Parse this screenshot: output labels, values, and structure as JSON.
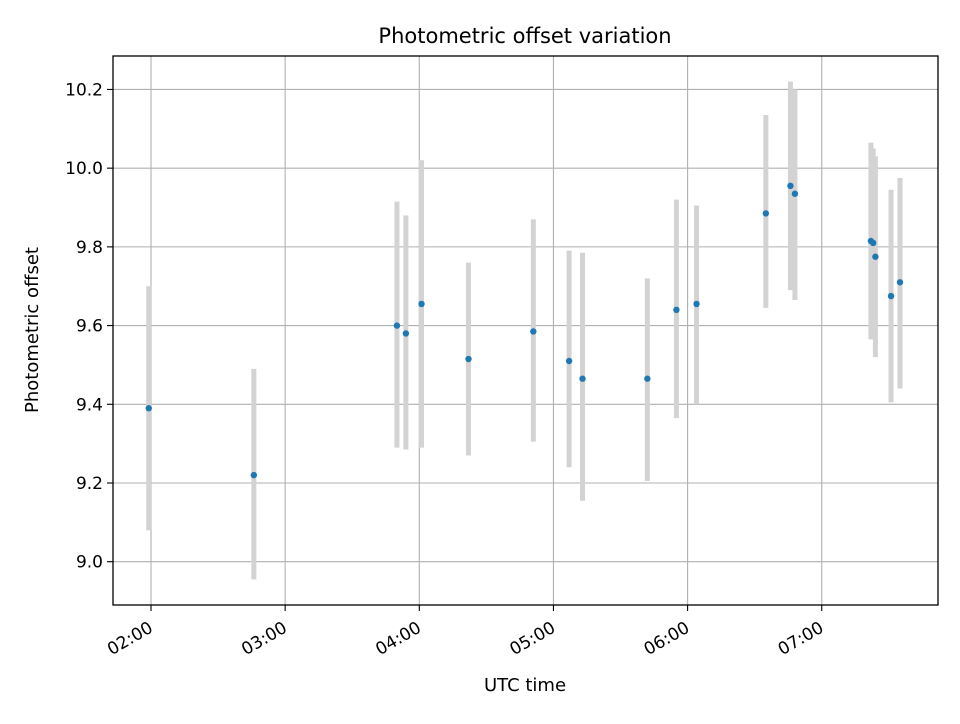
{
  "chart_data": {
    "type": "scatter",
    "title": "Photometric offset variation",
    "xlabel": "UTC time",
    "ylabel": "Photometric offset",
    "x_unit": "time-of-day (UTC)",
    "xlim": [
      "01:43",
      "07:52"
    ],
    "ylim": [
      8.89,
      10.285
    ],
    "x_ticks": [
      "02:00",
      "03:00",
      "04:00",
      "05:00",
      "06:00",
      "07:00"
    ],
    "y_ticks": [
      9.0,
      9.2,
      9.4,
      9.6,
      9.8,
      10.0,
      10.2
    ],
    "grid": true,
    "error_bar_color": "#d3d3d3",
    "point_color": "#1f77b4",
    "points": [
      {
        "x": "01:59",
        "y": 9.39,
        "low": 9.08,
        "high": 9.7
      },
      {
        "x": "02:46",
        "y": 9.22,
        "low": 8.955,
        "high": 9.49
      },
      {
        "x": "03:50",
        "y": 9.6,
        "low": 9.29,
        "high": 9.915
      },
      {
        "x": "03:54",
        "y": 9.58,
        "low": 9.285,
        "high": 9.88
      },
      {
        "x": "04:01",
        "y": 9.655,
        "low": 9.29,
        "high": 10.02
      },
      {
        "x": "04:22",
        "y": 9.515,
        "low": 9.27,
        "high": 9.76
      },
      {
        "x": "04:51",
        "y": 9.585,
        "low": 9.305,
        "high": 9.87
      },
      {
        "x": "05:07",
        "y": 9.51,
        "low": 9.24,
        "high": 9.79
      },
      {
        "x": "05:13",
        "y": 9.465,
        "low": 9.155,
        "high": 9.785
      },
      {
        "x": "05:42",
        "y": 9.465,
        "low": 9.205,
        "high": 9.72
      },
      {
        "x": "05:55",
        "y": 9.64,
        "low": 9.365,
        "high": 9.92
      },
      {
        "x": "06:04",
        "y": 9.655,
        "low": 9.4,
        "high": 9.905
      },
      {
        "x": "06:35",
        "y": 9.885,
        "low": 9.645,
        "high": 10.135
      },
      {
        "x": "06:46",
        "y": 9.955,
        "low": 9.69,
        "high": 10.22
      },
      {
        "x": "06:48",
        "y": 9.935,
        "low": 9.665,
        "high": 10.2
      },
      {
        "x": "07:22",
        "y": 9.815,
        "low": 9.565,
        "high": 10.065
      },
      {
        "x": "07:23",
        "y": 9.81,
        "low": 9.57,
        "high": 10.05
      },
      {
        "x": "07:24",
        "y": 9.775,
        "low": 9.52,
        "high": 10.03
      },
      {
        "x": "07:31",
        "y": 9.675,
        "low": 9.405,
        "high": 9.945
      },
      {
        "x": "07:35",
        "y": 9.71,
        "low": 9.44,
        "high": 9.975
      }
    ]
  }
}
